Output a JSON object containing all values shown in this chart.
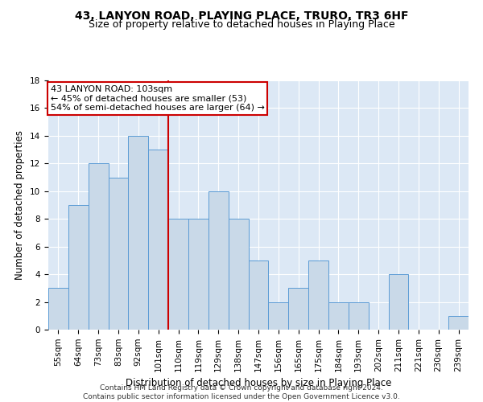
{
  "title": "43, LANYON ROAD, PLAYING PLACE, TRURO, TR3 6HF",
  "subtitle": "Size of property relative to detached houses in Playing Place",
  "xlabel": "Distribution of detached houses by size in Playing Place",
  "ylabel": "Number of detached properties",
  "categories": [
    "55sqm",
    "64sqm",
    "73sqm",
    "83sqm",
    "92sqm",
    "101sqm",
    "110sqm",
    "119sqm",
    "129sqm",
    "138sqm",
    "147sqm",
    "156sqm",
    "165sqm",
    "175sqm",
    "184sqm",
    "193sqm",
    "202sqm",
    "211sqm",
    "221sqm",
    "230sqm",
    "239sqm"
  ],
  "values": [
    3,
    9,
    12,
    11,
    14,
    13,
    8,
    8,
    10,
    8,
    5,
    2,
    3,
    5,
    2,
    2,
    0,
    4,
    0,
    0,
    1
  ],
  "bar_color": "#c9d9e8",
  "bar_edge_color": "#5b9bd5",
  "ref_line_x": 5.5,
  "ref_line_color": "#cc0000",
  "annotation_text": "43 LANYON ROAD: 103sqm\n← 45% of detached houses are smaller (53)\n54% of semi-detached houses are larger (64) →",
  "annotation_box_color": "#ffffff",
  "annotation_box_edge": "#cc0000",
  "ylim": [
    0,
    18
  ],
  "yticks": [
    0,
    2,
    4,
    6,
    8,
    10,
    12,
    14,
    16,
    18
  ],
  "footer": "Contains HM Land Registry data © Crown copyright and database right 2024.\nContains public sector information licensed under the Open Government Licence v3.0.",
  "background_color": "#dce8f5",
  "title_fontsize": 10,
  "subtitle_fontsize": 9,
  "axis_label_fontsize": 8.5,
  "tick_fontsize": 7.5,
  "footer_fontsize": 6.5,
  "annotation_fontsize": 8
}
